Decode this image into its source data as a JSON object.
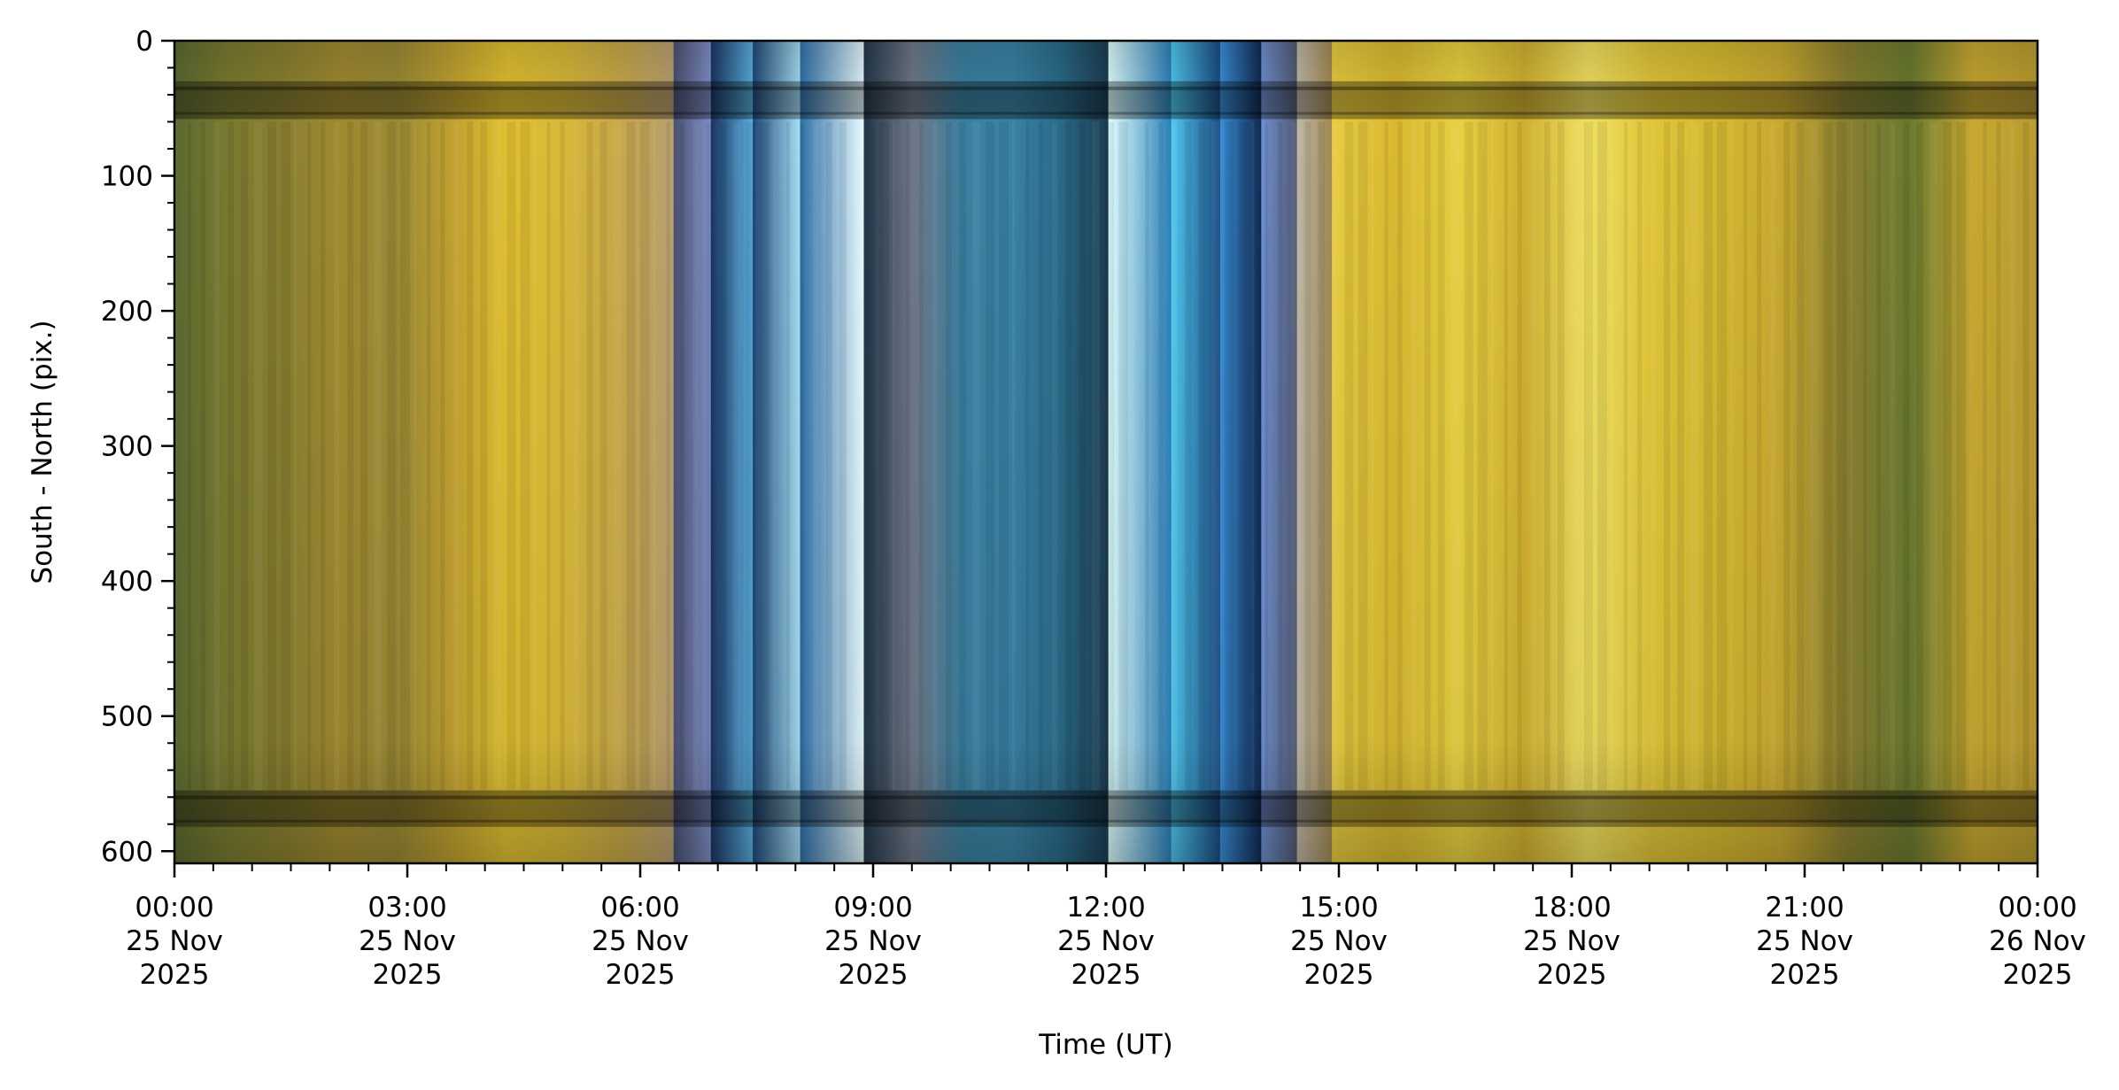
{
  "chart_data": {
    "type": "heatmap",
    "title": "",
    "xlabel": "Time (UT)",
    "ylabel": "South - North (pix.)",
    "xlim_hours": [
      0,
      24
    ],
    "ylim": [
      609,
      0
    ],
    "y_ticks": [
      0,
      100,
      200,
      300,
      400,
      500,
      600
    ],
    "y_minor_step": 20,
    "x_minor_step_hours": 0.5,
    "x_ticks": [
      {
        "hour": 0,
        "time": "00:00",
        "date": "25 Nov",
        "year": "2025"
      },
      {
        "hour": 3,
        "time": "03:00",
        "date": "25 Nov",
        "year": "2025"
      },
      {
        "hour": 6,
        "time": "06:00",
        "date": "25 Nov",
        "year": "2025"
      },
      {
        "hour": 9,
        "time": "09:00",
        "date": "25 Nov",
        "year": "2025"
      },
      {
        "hour": 12,
        "time": "12:00",
        "date": "25 Nov",
        "year": "2025"
      },
      {
        "hour": 15,
        "time": "15:00",
        "date": "25 Nov",
        "year": "2025"
      },
      {
        "hour": 18,
        "time": "18:00",
        "date": "25 Nov",
        "year": "2025"
      },
      {
        "hour": 21,
        "time": "21:00",
        "date": "25 Nov",
        "year": "2025"
      },
      {
        "hour": 24,
        "time": "00:00",
        "date": "26 Nov",
        "year": "2025"
      }
    ],
    "color_bands": [
      {
        "start": 0.0,
        "end": 6.43,
        "colors": [
          "#5a6a30",
          "#7a7a30",
          "#8a8030",
          "#a08a30",
          "#9a8a35",
          "#c0a030",
          "#e0c030",
          "#d8b838",
          "#c8a848",
          "#b8a070"
        ]
      },
      {
        "start": 6.43,
        "end": 6.91,
        "colors": [
          "#4a5070",
          "#8090c8"
        ]
      },
      {
        "start": 6.91,
        "end": 7.45,
        "colors": [
          "#1a3560",
          "#5ab0e0"
        ]
      },
      {
        "start": 7.45,
        "end": 8.06,
        "colors": [
          "#1f4878",
          "#a8e0f5"
        ]
      },
      {
        "start": 8.06,
        "end": 8.88,
        "colors": [
          "#3070a8",
          "#e8fbff"
        ]
      },
      {
        "start": 8.88,
        "end": 12.03,
        "colors": [
          "#23384a",
          "#707888",
          "#3a80a0",
          "#3a82a4",
          "#2a6a88",
          "#1c3c50"
        ]
      },
      {
        "start": 12.03,
        "end": 12.84,
        "colors": [
          "#e0ffff",
          "#2a80b8"
        ]
      },
      {
        "start": 12.84,
        "end": 13.47,
        "colors": [
          "#50c8f0",
          "#1a4a80"
        ]
      },
      {
        "start": 13.47,
        "end": 14.0,
        "colors": [
          "#3a90d8",
          "#102850"
        ]
      },
      {
        "start": 14.0,
        "end": 14.46,
        "colors": [
          "#7090d0",
          "#505870"
        ]
      },
      {
        "start": 14.46,
        "end": 14.91,
        "colors": [
          "#c0b8a8",
          "#a08850"
        ]
      },
      {
        "start": 14.91,
        "end": 24.0,
        "colors": [
          "#e8cc40",
          "#d8b830",
          "#e8d040",
          "#d0b030",
          "#f0e060",
          "#e0c438",
          "#d4b830",
          "#c8a830",
          "#8a8030",
          "#6a7a30",
          "#c8a830",
          "#b89a30"
        ]
      }
    ],
    "dark_rows": [
      [
        30,
        58
      ],
      [
        555,
        582
      ]
    ]
  }
}
